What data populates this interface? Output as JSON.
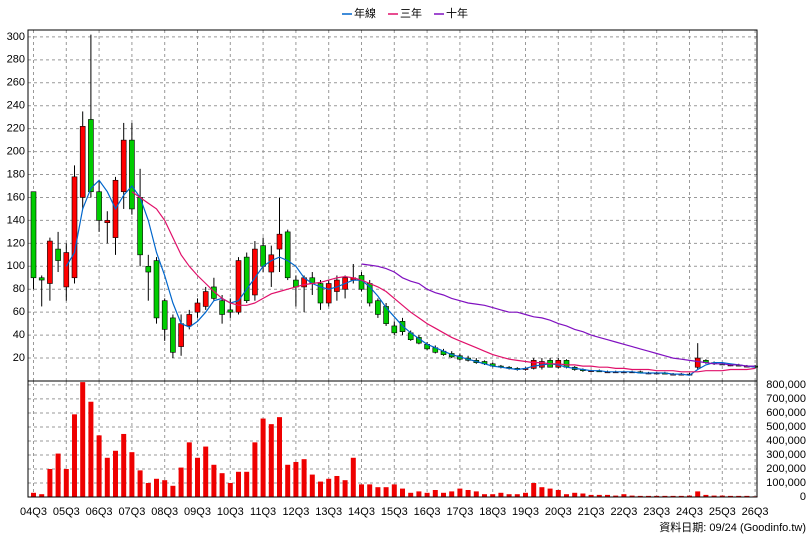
{
  "chart_data": [
    {
      "type": "candlestick",
      "legend": "top",
      "grid": true,
      "up_color": "#ff0000",
      "down_color": "#00cc00",
      "categories": [
        "04Q3",
        null,
        null,
        null,
        "05Q3",
        null,
        null,
        null,
        "06Q3",
        null,
        null,
        null,
        "07Q3",
        null,
        null,
        null,
        "08Q3",
        null,
        null,
        null,
        "09Q3",
        null,
        null,
        null,
        "10Q3",
        null,
        null,
        null,
        "11Q3",
        null,
        null,
        null,
        "12Q3",
        null,
        null,
        null,
        "13Q3",
        null,
        null,
        null,
        "14Q3",
        null,
        null,
        null,
        "15Q3",
        null,
        null,
        null,
        "16Q3",
        null,
        null,
        null,
        "17Q3",
        null,
        null,
        null,
        "18Q3",
        null,
        null,
        null,
        "19Q3",
        null,
        null,
        null,
        "20Q3",
        null,
        null,
        null,
        "21Q3",
        null,
        null,
        null,
        "22Q3",
        null,
        null,
        null,
        "23Q3",
        null,
        null,
        null,
        "24Q3",
        null,
        null,
        null,
        "25Q3",
        null,
        null,
        null,
        "26Q3"
      ],
      "open": [
        165,
        90,
        85,
        115,
        82,
        90,
        160,
        228,
        165,
        138,
        125,
        165,
        210,
        160,
        100,
        105,
        70,
        55,
        30,
        48,
        60,
        65,
        82,
        70,
        62,
        60,
        108,
        75,
        118,
        95,
        115,
        130,
        88,
        82,
        90,
        85,
        68,
        78,
        80,
        88,
        92,
        85,
        70,
        65,
        48,
        52,
        42,
        38,
        32,
        29,
        26,
        24,
        22,
        20,
        18,
        17,
        15,
        13,
        12,
        11,
        10,
        11,
        12,
        18,
        12,
        18,
        12,
        10,
        9,
        9,
        8,
        8,
        8,
        8,
        8,
        7,
        7,
        7,
        6,
        6,
        6,
        12,
        18,
        16,
        15,
        14,
        14,
        13,
        13
      ],
      "high": [
        165,
        92,
        125,
        130,
        120,
        188,
        235,
        302,
        175,
        148,
        178,
        225,
        225,
        185,
        110,
        108,
        72,
        58,
        58,
        62,
        72,
        82,
        90,
        75,
        72,
        108,
        112,
        122,
        125,
        118,
        160,
        132,
        92,
        92,
        95,
        88,
        88,
        92,
        92,
        102,
        95,
        88,
        72,
        68,
        52,
        55,
        44,
        40,
        34,
        31,
        28,
        26,
        24,
        22,
        20,
        18,
        16,
        14,
        13,
        12,
        12,
        20,
        20,
        20,
        20,
        19,
        13,
        11,
        10,
        10,
        9,
        9,
        9,
        9,
        9,
        8,
        8,
        8,
        7,
        7,
        7,
        33,
        19,
        17,
        16,
        15,
        15,
        14,
        14
      ],
      "low": [
        80,
        65,
        70,
        95,
        70,
        85,
        150,
        160,
        130,
        120,
        110,
        150,
        145,
        100,
        70,
        50,
        35,
        20,
        22,
        45,
        55,
        62,
        70,
        50,
        55,
        58,
        68,
        70,
        95,
        82,
        95,
        88,
        65,
        60,
        75,
        62,
        65,
        70,
        72,
        85,
        78,
        65,
        55,
        48,
        40,
        40,
        35,
        32,
        27,
        24,
        22,
        20,
        18,
        17,
        15,
        14,
        12,
        11,
        10,
        9,
        9,
        10,
        10,
        12,
        11,
        11,
        9,
        8,
        8,
        8,
        7,
        7,
        7,
        7,
        7,
        6,
        6,
        6,
        5,
        5,
        5,
        10,
        15,
        14,
        14,
        13,
        13,
        12,
        11
      ],
      "close": [
        90,
        88,
        122,
        105,
        112,
        178,
        222,
        165,
        140,
        140,
        175,
        210,
        150,
        110,
        95,
        55,
        45,
        25,
        50,
        58,
        68,
        78,
        72,
        58,
        60,
        105,
        70,
        115,
        100,
        110,
        128,
        90,
        82,
        90,
        85,
        68,
        85,
        88,
        90,
        90,
        80,
        68,
        58,
        50,
        42,
        43,
        36,
        33,
        28,
        25,
        23,
        21,
        19,
        18,
        16,
        15,
        13,
        12,
        11,
        10,
        11,
        18,
        17,
        12,
        18,
        12,
        10,
        9,
        9,
        8,
        8,
        8,
        8,
        8,
        7,
        7,
        7,
        6,
        6,
        6,
        6,
        20,
        16,
        15,
        14,
        14,
        13,
        13,
        12
      ],
      "series": [
        {
          "name": "年線",
          "color": "#0066cc",
          "values": [
            null,
            null,
            null,
            null,
            100,
            112,
            150,
            168,
            175,
            165,
            150,
            162,
            170,
            160,
            140,
            112,
            92,
            68,
            50,
            47,
            52,
            60,
            70,
            72,
            68,
            70,
            80,
            90,
            100,
            105,
            108,
            105,
            100,
            90,
            85,
            82,
            80,
            82,
            85,
            88,
            88,
            82,
            74,
            64,
            56,
            48,
            42,
            37,
            32,
            29,
            26,
            23,
            21,
            19,
            17,
            15,
            13,
            12,
            11,
            10,
            11,
            13,
            14,
            15,
            14,
            12,
            11,
            10,
            9,
            9,
            8,
            8,
            8,
            8,
            7,
            7,
            7,
            7,
            6,
            6,
            5,
            10,
            14,
            16,
            16,
            15,
            14,
            13,
            12
          ]
        },
        {
          "name": "三年",
          "color": "#e0106a",
          "values": [
            null,
            null,
            null,
            null,
            null,
            null,
            null,
            null,
            null,
            null,
            null,
            null,
            165,
            160,
            155,
            150,
            140,
            125,
            110,
            100,
            92,
            85,
            78,
            72,
            68,
            66,
            66,
            68,
            72,
            76,
            78,
            80,
            82,
            84,
            85,
            86,
            88,
            90,
            91,
            90,
            88,
            85,
            82,
            78,
            72,
            66,
            60,
            55,
            50,
            46,
            42,
            38,
            35,
            32,
            29,
            26,
            23,
            21,
            19,
            18,
            17,
            16,
            16,
            15,
            15,
            14,
            14,
            13,
            13,
            12,
            12,
            11,
            11,
            10,
            10,
            10,
            9,
            9,
            9,
            8,
            8,
            8,
            9,
            9,
            9,
            10,
            10,
            10,
            11
          ]
        },
        {
          "name": "十年",
          "color": "#8010c0",
          "values": [
            null,
            null,
            null,
            null,
            null,
            null,
            null,
            null,
            null,
            null,
            null,
            null,
            null,
            null,
            null,
            null,
            null,
            null,
            null,
            null,
            null,
            null,
            null,
            null,
            null,
            null,
            null,
            null,
            null,
            null,
            null,
            null,
            null,
            null,
            null,
            null,
            null,
            null,
            null,
            null,
            102,
            101,
            100,
            98,
            95,
            90,
            87,
            85,
            80,
            77,
            75,
            72,
            70,
            68,
            67,
            66,
            64,
            62,
            60,
            60,
            58,
            56,
            55,
            53,
            50,
            48,
            45,
            43,
            40,
            38,
            36,
            34,
            32,
            30,
            28,
            26,
            24,
            22,
            20,
            19,
            18,
            17,
            16,
            15,
            15,
            14,
            14,
            13,
            13
          ]
        }
      ],
      "ylim": [
        0,
        306
      ],
      "yticks": [
        20,
        40,
        60,
        80,
        100,
        120,
        140,
        160,
        180,
        200,
        220,
        240,
        260,
        280,
        300
      ]
    },
    {
      "type": "bar",
      "grid": true,
      "color": "#ee0000",
      "values": [
        30000,
        20000,
        200000,
        310000,
        200000,
        590000,
        820000,
        680000,
        440000,
        280000,
        330000,
        450000,
        320000,
        190000,
        100000,
        130000,
        120000,
        80000,
        210000,
        390000,
        280000,
        360000,
        230000,
        170000,
        100000,
        180000,
        180000,
        390000,
        560000,
        520000,
        570000,
        230000,
        250000,
        270000,
        160000,
        110000,
        130000,
        150000,
        120000,
        280000,
        90000,
        90000,
        70000,
        70000,
        90000,
        60000,
        30000,
        40000,
        30000,
        50000,
        30000,
        40000,
        60000,
        50000,
        40000,
        20000,
        20000,
        30000,
        20000,
        20000,
        30000,
        100000,
        70000,
        60000,
        50000,
        20000,
        30000,
        25000,
        15000,
        15000,
        15000,
        10000,
        20000,
        10000,
        8000,
        8000,
        8000,
        8000,
        8000,
        8000,
        10000,
        40000,
        15000,
        10000,
        10000,
        8000,
        8000,
        8000,
        5000
      ],
      "ylim": [
        0,
        828000
      ],
      "yticks": [
        0,
        {
          "value": 100000,
          "label": "100,000"
        },
        {
          "value": 200000,
          "label": "200,000"
        },
        {
          "value": 300000,
          "label": "300,000"
        },
        {
          "value": 400000,
          "label": "400,000"
        },
        {
          "value": 500000,
          "label": "500,000"
        },
        {
          "value": 600000,
          "label": "600,000"
        },
        {
          "value": 700000,
          "label": "700,000"
        },
        {
          "value": 800000,
          "label": "800,000"
        }
      ],
      "footer": "資料日期: 09/24  (Goodinfo.tw)"
    }
  ]
}
